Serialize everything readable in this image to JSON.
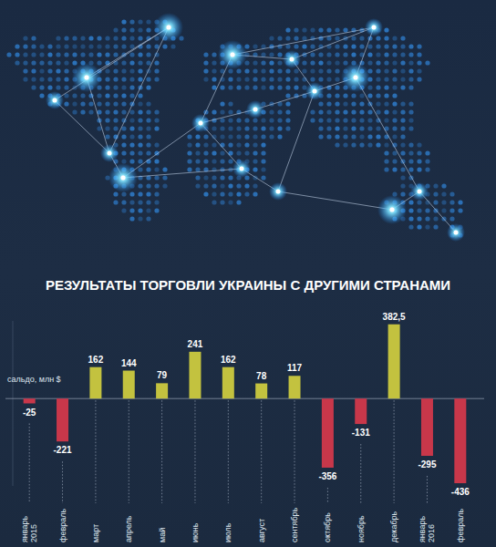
{
  "chart_data": {
    "type": "bar",
    "title": "РЕЗУЛЬТАТЫ ТОРГОВЛИ УКРАИНЫ С ДРУГИМИ СТРАНАМИ",
    "ylabel": "сальдо, млн $",
    "categories": [
      "январь 2015",
      "февраль",
      "март",
      "апрель",
      "май",
      "июнь",
      "июль",
      "август",
      "сентябрь",
      "октябрь",
      "ноябрь",
      "декабрь",
      "январь 2016",
      "февраль"
    ],
    "values": [
      -25,
      -221,
      162,
      144,
      79,
      241,
      162,
      78,
      117,
      -356,
      -131,
      382.5,
      -295,
      -436
    ],
    "value_labels": [
      "-25",
      "-221",
      "162",
      "144",
      "79",
      "241",
      "162",
      "78",
      "117",
      "-356",
      "-131",
      "382,5",
      "-295",
      "-436"
    ],
    "colors": [
      "#c8374a",
      "#c8374a",
      "#c3c23f",
      "#c3c23f",
      "#c3c23f",
      "#c3c23f",
      "#c3c23f",
      "#c3c23f",
      "#c3c23f",
      "#c8374a",
      "#c8374a",
      "#c3c23f",
      "#c8374a",
      "#c8374a"
    ],
    "ylim": [
      -450,
      400
    ],
    "yticks": [
      0
    ],
    "grid": false,
    "data_labels": true,
    "tick_labels": "x"
  }
}
